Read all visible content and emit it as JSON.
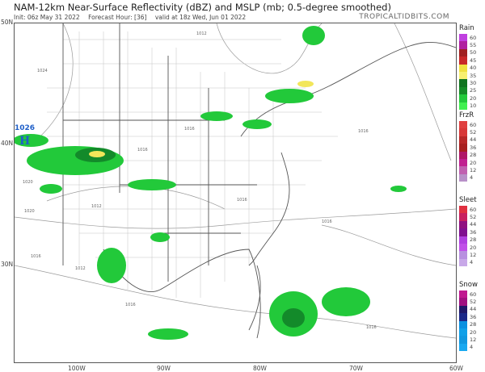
{
  "header": {
    "title": "NAM-12km Near-Surface Reflectivity (dBZ) and MSLP (mb; 0.5-degree smoothed)",
    "init": "Init: 06z May 31 2022",
    "forecast_hour": "Forecast Hour: [36]",
    "valid": "valid at 18z Wed, Jun 01 2022",
    "brand": "TROPICALTIDBITS.COM"
  },
  "axes": {
    "lat_labels": [
      "50N",
      "40N",
      "30N"
    ],
    "lon_labels": [
      "100W",
      "90W",
      "80W",
      "70W",
      "60W"
    ]
  },
  "map": {
    "high_pressure": {
      "symbol": "H",
      "value": "1026",
      "color": "#1f5fc8"
    },
    "isobar_labels": [
      "1012",
      "1016",
      "1020",
      "1024",
      "1016",
      "1012",
      "1016",
      "1016",
      "1016",
      "1016",
      "1020",
      "1016",
      "1012",
      "1016"
    ],
    "reflectivity_colors": {
      "light": "#22c93a",
      "medium": "#138a2a",
      "heavy": "#f2e65a"
    }
  },
  "legends": [
    {
      "title": "Rain",
      "labels": [
        "60",
        "55",
        "50",
        "45",
        "40",
        "35",
        "30",
        "25",
        "20",
        "10"
      ],
      "colors": [
        "#c040e0",
        "#b020a0",
        "#c81e6e",
        "#a02020",
        "#c82828",
        "#e03030",
        "#f0e040",
        "#f8f070",
        "#0a5a18",
        "#10741f",
        "#148c26",
        "#1aa82e",
        "#22c93a",
        "#40f050"
      ]
    },
    {
      "title": "FrzR",
      "labels": [
        "60",
        "52",
        "44",
        "36",
        "28",
        "20",
        "12",
        "4"
      ],
      "colors": [
        "#e04040",
        "#d83838",
        "#c83030",
        "#b82828",
        "#a82020",
        "#c02070",
        "#b01868",
        "#c02090",
        "#a81a80",
        "#c060b0",
        "#b890c8"
      ]
    },
    {
      "title": "Sleet",
      "labels": [
        "60",
        "52",
        "44",
        "36",
        "28",
        "20",
        "12",
        "4"
      ],
      "colors": [
        "#e03040",
        "#c82060",
        "#b01870",
        "#901080",
        "#801090",
        "#b040e0",
        "#c050e8",
        "#c070f0",
        "#b890e0",
        "#c8a8e8"
      ]
    },
    {
      "title": "Snow",
      "labels": [
        "60",
        "52",
        "44",
        "36",
        "28",
        "20",
        "12",
        "4"
      ],
      "colors": [
        "#c01890",
        "#a01080",
        "#282070",
        "#201868",
        "#1c2888",
        "#0870c8",
        "#0a90e0",
        "#10a0e8",
        "#0880d0",
        "#1098e0",
        "#18a8f0"
      ]
    }
  ]
}
